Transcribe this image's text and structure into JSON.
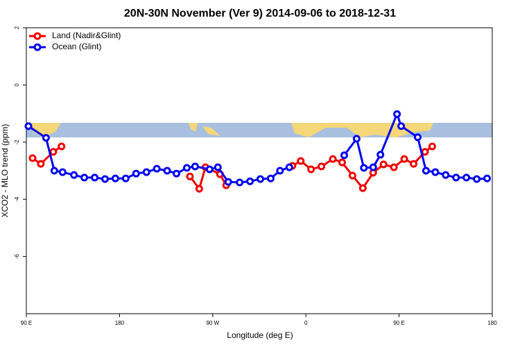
{
  "chart_data": {
    "type": "line",
    "title": "20N-30N November (Ver 9)   2014-09-06 to 2018-12-31",
    "x_label": "Longitude (deg E)",
    "y_label": "XCO2 - MLO trend (ppm)",
    "xlim": [
      90,
      540
    ],
    "xticks": [
      {
        "value": 90,
        "label": "90 E"
      },
      {
        "value": 180,
        "label": "180"
      },
      {
        "value": 270,
        "label": "90 W"
      },
      {
        "value": 360,
        "label": "0"
      },
      {
        "value": 450,
        "label": "90 E"
      },
      {
        "value": 540,
        "label": "180"
      }
    ],
    "ylim": [
      -8,
      2
    ],
    "yticks": [
      2,
      0,
      -2,
      -4,
      -6
    ],
    "legend": "top-left",
    "series": [
      {
        "name": "Land (Nadir&Glint)",
        "color": "#ee0000",
        "x": [
          96,
          104,
          116,
          124,
          190,
          248,
          257,
          263,
          277,
          283,
          310,
          347,
          355,
          365,
          375,
          386,
          395,
          405,
          415,
          425,
          435,
          445,
          455,
          464,
          475,
          482
        ],
        "values": [
          -2.56,
          -2.76,
          -2.34,
          -2.15,
          null,
          -3.2,
          -3.63,
          -2.88,
          -3.12,
          -3.51,
          null,
          -2.83,
          -2.66,
          -2.95,
          -2.85,
          -2.59,
          -2.71,
          -3.17,
          -3.61,
          -3.07,
          -2.78,
          -2.88,
          -2.59,
          -2.76,
          -2.34,
          -2.15
        ]
      },
      {
        "name": "Ocean (Glint)",
        "color": "#0000ee",
        "x": [
          92,
          109,
          117,
          125,
          136,
          146,
          156,
          166,
          176,
          186,
          196,
          206,
          216,
          226,
          235,
          245,
          253,
          267,
          275,
          285,
          296,
          306,
          316,
          326,
          335,
          344,
          370,
          397,
          409,
          416,
          425,
          432,
          448,
          452,
          468,
          476,
          485,
          495,
          505,
          515,
          525,
          535
        ],
        "values": [
          -1.44,
          -1.85,
          -3.0,
          -3.05,
          -3.15,
          -3.24,
          -3.24,
          -3.29,
          -3.27,
          -3.27,
          -3.1,
          -3.05,
          -2.93,
          -3.0,
          -3.1,
          -2.9,
          -2.85,
          -2.95,
          -2.88,
          -3.39,
          -3.41,
          -3.37,
          -3.29,
          -3.27,
          -3.0,
          -2.88,
          null,
          -2.46,
          -1.88,
          -2.9,
          -2.88,
          -2.44,
          -1.02,
          -1.44,
          -1.83,
          -3.0,
          -3.05,
          -3.15,
          -3.24,
          -3.24,
          -3.29,
          -3.27
        ]
      }
    ]
  }
}
